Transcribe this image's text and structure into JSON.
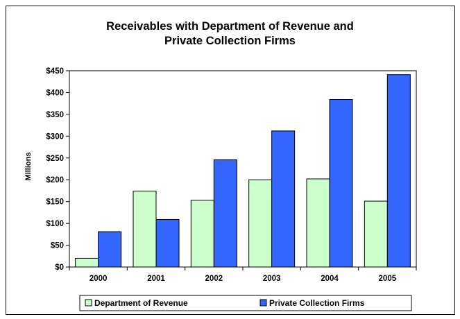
{
  "chart_data": {
    "type": "bar",
    "title_line1": "Receivables with Department of Revenue and",
    "title_line2": "Private Collection Firms",
    "ylabel": "Millions",
    "xlabel": "",
    "categories": [
      "2000",
      "2001",
      "2002",
      "2003",
      "2004",
      "2005"
    ],
    "series": [
      {
        "name": "Department of Revenue",
        "color": "#ccffcc",
        "values": [
          20,
          174,
          153,
          200,
          202,
          151
        ]
      },
      {
        "name": "Private Collection Firms",
        "color": "#3366ff",
        "values": [
          81,
          109,
          246,
          312,
          384,
          441
        ]
      }
    ],
    "ylim": [
      0,
      450
    ],
    "yticks": [
      0,
      50,
      100,
      150,
      200,
      250,
      300,
      350,
      400,
      450
    ],
    "ytick_labels": [
      "$0",
      "$50",
      "$100",
      "$150",
      "$200",
      "$250",
      "$300",
      "$350",
      "$400",
      "$450"
    ],
    "grid": false,
    "legend_position": "bottom"
  }
}
